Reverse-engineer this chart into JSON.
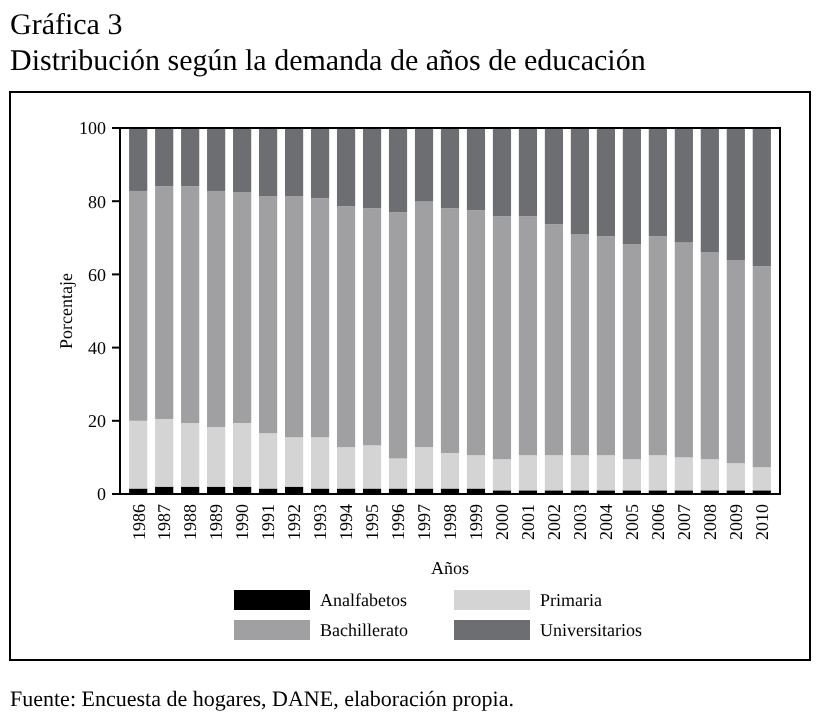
{
  "chart_data": {
    "type": "bar",
    "title": "Gráfica 3",
    "subtitle": "Distribución según la demanda de años de educación",
    "xlabel": "Años",
    "ylabel": "Porcentaje",
    "categories": [
      "1986",
      "1987",
      "1988",
      "1989",
      "1990",
      "1991",
      "1992",
      "1993",
      "1994",
      "1995",
      "1996",
      "1997",
      "1998",
      "1999",
      "2000",
      "2001",
      "2002",
      "2003",
      "2004",
      "2005",
      "2006",
      "2007",
      "2008",
      "2009",
      "2010"
    ],
    "stacked": true,
    "ylim": [
      0,
      100
    ],
    "yticks": [
      0,
      20,
      40,
      60,
      80,
      100
    ],
    "grid": false,
    "legend": "bottom",
    "series": [
      {
        "name": "Analfabetos",
        "color": "#000000",
        "values": [
          1.5,
          2,
          2,
          2,
          2,
          1.5,
          2,
          1.5,
          1.5,
          1.5,
          1.5,
          1.5,
          1.5,
          1.5,
          1,
          1,
          1,
          1,
          1,
          1,
          1,
          1,
          1,
          1,
          1
        ]
      },
      {
        "name": "Primaria",
        "color": "#d4d4d4",
        "values": [
          18.5,
          18.5,
          17.4,
          16.3,
          17.4,
          15.1,
          13.5,
          14,
          11.3,
          11.8,
          8.2,
          11.3,
          9.7,
          9.1,
          8.5,
          9.6,
          9.6,
          9.6,
          9.6,
          8.5,
          9.6,
          9,
          8.5,
          7.4,
          6.3
        ]
      },
      {
        "name": "Bachillerato",
        "color": "#a0a0a2",
        "values": [
          62.8,
          63.6,
          64.7,
          64.5,
          63,
          64.8,
          65.9,
          65.3,
          65.8,
          64.8,
          67.3,
          67.1,
          66.9,
          66.9,
          66.4,
          65.3,
          63.1,
          60.3,
          59.8,
          58.7,
          59.8,
          58.7,
          56.5,
          55.4,
          54.9
        ]
      },
      {
        "name": "Universitarios",
        "color": "#6d6e71",
        "values": [
          17.2,
          15.9,
          15.9,
          17.2,
          17.6,
          18.6,
          18.6,
          19.2,
          21.4,
          21.9,
          23,
          20.1,
          21.9,
          22.5,
          24.1,
          24.1,
          26.3,
          29.1,
          29.6,
          31.8,
          29.6,
          31.3,
          34,
          36.2,
          37.8
        ]
      }
    ],
    "annotations": [
      "Fuente: Encuesta de hogares, DANE, elaboración propia."
    ]
  }
}
